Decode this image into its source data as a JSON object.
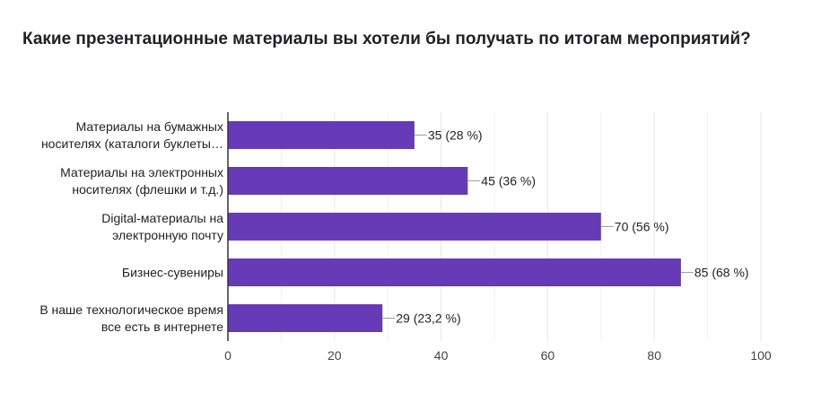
{
  "question": {
    "title": "Какие презентационные материалы вы хотели бы получать по итогам мероприятий?"
  },
  "chart_data": {
    "type": "bar",
    "orientation": "horizontal",
    "title": "Какие презентационные материалы вы хотели бы получать по итогам мероприятий?",
    "categories": [
      [
        "Материалы на бумажных",
        "носителях (каталоги буклеты…"
      ],
      [
        "Материалы на электронных",
        "носителях (флешки и т.д.)"
      ],
      [
        "Digital-материалы на",
        "электронную почту"
      ],
      [
        "Бизнес-сувениры"
      ],
      [
        "В наше технологическое время",
        "все есть в интернете"
      ]
    ],
    "values": [
      35,
      45,
      70,
      85,
      29
    ],
    "value_labels": [
      "35 (28 %)",
      "45 (36 %)",
      "70 (56 %)",
      "85 (68 %)",
      "29 (23,2 %)"
    ],
    "xlim": [
      0,
      100
    ],
    "xticks": [
      0,
      20,
      40,
      60,
      80,
      100
    ],
    "grid": true,
    "bar_color": "#673ab7",
    "grid_color": "#e6e6e6",
    "axis_color": "#333333",
    "leader_color": "#9e9e9e"
  }
}
